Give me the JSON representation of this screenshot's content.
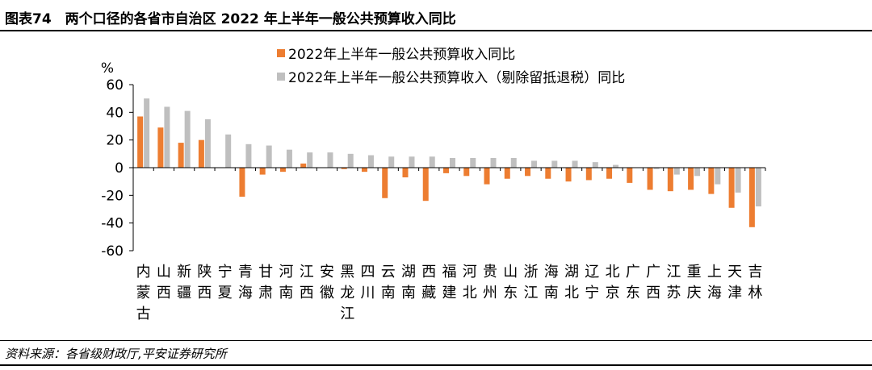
{
  "figure": {
    "title": "图表74　两个口径的各省市自治区 2022 年上半年一般公共预算收入同比",
    "source": "资料来源：各省级财政厅,平安证券研究所"
  },
  "colors": {
    "series1": "#ED7D31",
    "series2": "#BFBFBF",
    "axis": "#000000"
  },
  "chart_data": {
    "type": "bar",
    "ylabel": "%",
    "ylim": [
      -60,
      60
    ],
    "yticks": [
      60,
      40,
      20,
      0,
      -20,
      -40,
      -60
    ],
    "legend_position": "top",
    "grid": false,
    "categories": [
      "内蒙古",
      "山西",
      "新疆",
      "陕西",
      "宁夏",
      "青海",
      "甘肃",
      "河南",
      "江西",
      "安徽",
      "黑龙江",
      "四川",
      "云南",
      "湖南",
      "西藏",
      "福建",
      "河北",
      "贵州",
      "山东",
      "浙江",
      "海南",
      "湖北",
      "辽宁",
      "北京",
      "广东",
      "广西",
      "江苏",
      "重庆",
      "上海",
      "天津",
      "吉林"
    ],
    "series": [
      {
        "name": "2022年上半年一般公共预算收入同比",
        "values": [
          37,
          29,
          18,
          20,
          0,
          -21,
          -5,
          -3,
          3,
          0,
          -1,
          -3,
          -22,
          -7,
          -24,
          -4,
          -6,
          -12,
          -8,
          -6,
          -8,
          -10,
          -9,
          -8,
          -11,
          -16,
          -17,
          -16,
          -19,
          -29,
          -43
        ]
      },
      {
        "name": "2022年上半年一般公共预算收入（剔除留抵退税）同比",
        "values": [
          50,
          44,
          41,
          35,
          24,
          17,
          16,
          13,
          11,
          11,
          10,
          9,
          8,
          8,
          8,
          7,
          7,
          7,
          7,
          5,
          5,
          5,
          4,
          2,
          0,
          -1,
          -5,
          -6,
          -12,
          -18,
          -28
        ]
      }
    ]
  }
}
